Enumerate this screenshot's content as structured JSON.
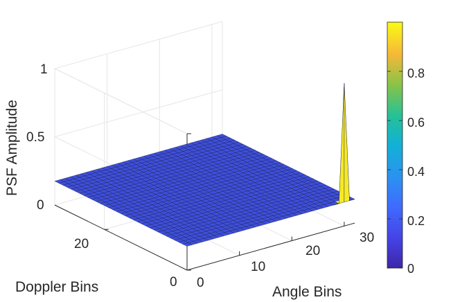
{
  "chart_data": {
    "type": "surface",
    "title": "",
    "xlabel": "Angle Bins",
    "ylabel": "Doppler Bins",
    "zlabel": "PSF Amplitude",
    "x_ticks": [
      "0",
      "10",
      "20",
      "30"
    ],
    "y_ticks": [
      "0",
      "20"
    ],
    "z_ticks": [
      "0",
      "0.5",
      "1"
    ],
    "xlim": [
      0,
      32
    ],
    "ylim": [
      0,
      32
    ],
    "zlim": [
      0,
      1
    ],
    "grid": true,
    "colormap": "parula",
    "colorbar": {
      "ticks": [
        "0",
        "0.2",
        "0.4",
        "0.6",
        "0.8"
      ],
      "range": [
        0,
        1
      ]
    },
    "surface": {
      "x_bins": 32,
      "y_bins": 32,
      "baseline_value": 0,
      "peak": {
        "x": 30,
        "y": 0,
        "value": 0.87
      }
    },
    "colors": {
      "surface_low": "#3e4fdc",
      "edge": "#151a3a",
      "peak": "#f5e92a",
      "grid": "#e6e6e6",
      "axis": "#262626"
    }
  }
}
